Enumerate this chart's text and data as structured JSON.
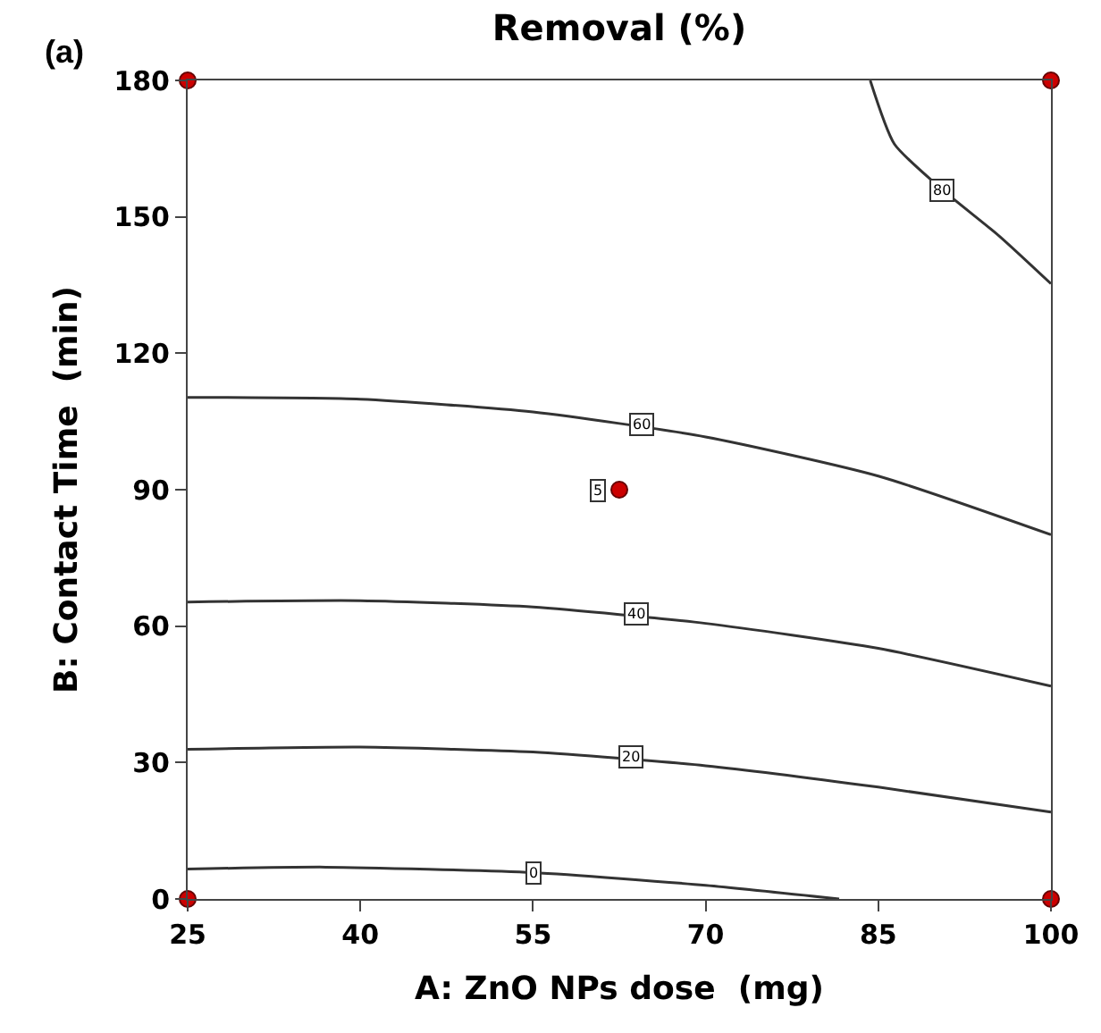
{
  "chart_data": {
    "type": "line",
    "title": "Removal (%)",
    "xlabel": "A: ZnO NPs dose  (mg)",
    "ylabel": "B: Contact Time  (min)",
    "xlim": [
      25,
      100
    ],
    "xticks": [
      25,
      40,
      55,
      70,
      85,
      100
    ],
    "ylim": [
      0,
      180
    ],
    "yticks": [
      0,
      30,
      60,
      90,
      120,
      150,
      180
    ],
    "line_style": "solid",
    "series": [
      {
        "color": "#333333",
        "x": [
          25,
          37,
          55,
          70,
          81.6
        ],
        "values": [
          6.6,
          7,
          5.8,
          3,
          0
        ]
      },
      {
        "color": "#333333",
        "x": [
          25,
          40,
          55,
          70,
          85,
          100
        ],
        "values": [
          32.9,
          33.4,
          32.3,
          29.3,
          24.6,
          19.1
        ]
      },
      {
        "color": "#333333",
        "x": [
          25,
          40,
          55,
          70,
          85,
          100
        ],
        "values": [
          65.3,
          65.6,
          64.2,
          60.6,
          55.1,
          46.8
        ]
      },
      {
        "color": "#333333",
        "x": [
          25,
          40,
          55,
          70,
          85,
          100
        ],
        "values": [
          110.3,
          109.9,
          107.1,
          101.6,
          93,
          80.1
        ]
      },
      {
        "color": "#333333",
        "x": [
          84.3,
          86.4,
          90.6,
          95.5,
          100
        ],
        "values": [
          180,
          166,
          155.9,
          145.8,
          135.3
        ]
      },
      {
        "type": "scatter",
        "color": "#cc0000",
        "marker": "circle",
        "x": [
          25,
          25,
          100,
          100,
          62.5
        ],
        "values": [
          0,
          180,
          0,
          180,
          90
        ]
      }
    ],
    "annotations": [
      "(a)",
      {
        "text": "0",
        "x": 55,
        "y": 5.8
      },
      {
        "text": "20",
        "x": 63.5,
        "y": 31.2
      },
      {
        "text": "40",
        "x": 64,
        "y": 62.5
      },
      {
        "text": "60",
        "x": 64.4,
        "y": 104.2
      },
      {
        "text": "80",
        "x": 90.6,
        "y": 155.9
      },
      {
        "text": "5",
        "x": 60.6,
        "y": 90
      }
    ]
  }
}
